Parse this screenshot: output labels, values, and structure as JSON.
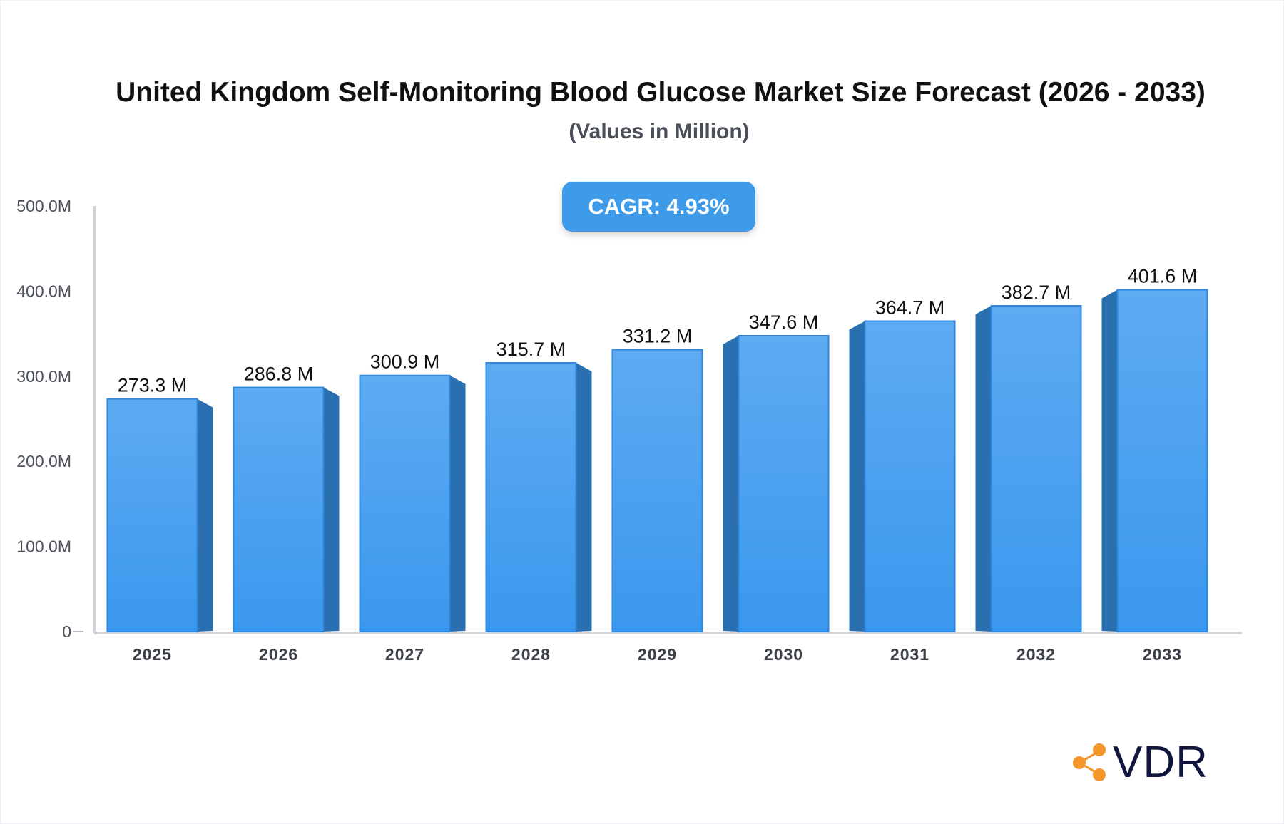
{
  "chart_data": {
    "type": "bar",
    "title": "United Kingdom Self-Monitoring Blood Glucose Market Size Forecast (2026 - 2033)",
    "subtitle": "(Values in Million)",
    "categories": [
      "2025",
      "2026",
      "2027",
      "2028",
      "2029",
      "2030",
      "2031",
      "2032",
      "2033"
    ],
    "values": [
      273.3,
      286.8,
      300.9,
      315.7,
      331.2,
      347.6,
      364.7,
      382.7,
      401.6
    ],
    "data_labels": [
      "273.3 M",
      "286.8 M",
      "300.9 M",
      "315.7 M",
      "331.2 M",
      "347.6 M",
      "364.7 M",
      "382.7 M",
      "401.6 M"
    ],
    "ylim": [
      0,
      500
    ],
    "yticks": [
      0,
      100,
      200,
      300,
      400,
      500
    ],
    "ytick_labels": [
      "0",
      "100.0M",
      "200.0M",
      "300.0M",
      "400.0M",
      "500.0M"
    ],
    "xlabel": "",
    "ylabel": "",
    "grid": false,
    "legend": "none",
    "colors": {
      "bar_top": "#5eabf2",
      "bar_bottom": "#3a98ee",
      "bar_side": "#2a6fb0",
      "axis": "#d0d3da"
    }
  },
  "badge": {
    "cagr": "CAGR: 4.93%",
    "color": "#3d9bea"
  },
  "logo": {
    "text": "VDR",
    "icon": "share-nodes-icon",
    "icon_color": "#f5962a"
  }
}
